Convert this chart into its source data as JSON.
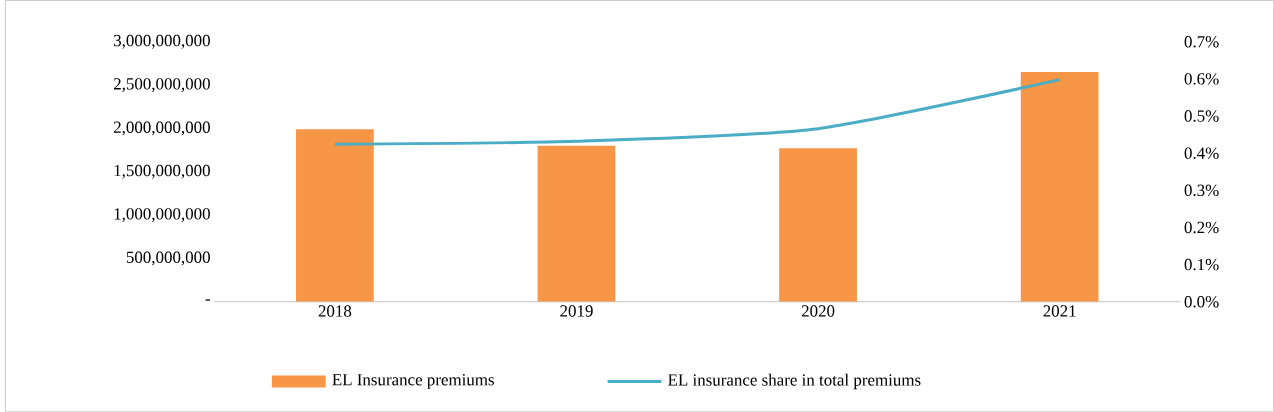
{
  "chart_data": {
    "type": "bar",
    "categories": [
      "2018",
      "2019",
      "2020",
      "2021"
    ],
    "series": [
      {
        "name": "EL Insurance premiums",
        "color": "#f79646",
        "values": [
          1990000000,
          1800000000,
          1770000000,
          2650000000
        ]
      },
      {
        "name": "EL insurance share in total premiums",
        "type": "line",
        "axis": "y2",
        "color": "#4bacc6",
        "values": [
          0.424,
          0.432,
          0.466,
          0.598
        ]
      }
    ],
    "ylim": [
      0,
      3000000000
    ],
    "yticks": [
      {
        "value": 0,
        "label": "-"
      },
      {
        "value": 500000000,
        "label": "500,000,000"
      },
      {
        "value": 1000000000,
        "label": "1,000,000,000"
      },
      {
        "value": 1500000000,
        "label": "1,500,000,000"
      },
      {
        "value": 2000000000,
        "label": "2,000,000,000"
      },
      {
        "value": 2500000000,
        "label": "2,500,000,000"
      },
      {
        "value": 3000000000,
        "label": "3,000,000,000"
      }
    ],
    "y2lim": [
      0,
      0.7
    ],
    "y2ticks": [
      {
        "value": 0,
        "label": "0.0%"
      },
      {
        "value": 0.1,
        "label": "0.1%"
      },
      {
        "value": 0.2,
        "label": "0.2%"
      },
      {
        "value": 0.3,
        "label": "0.3%"
      },
      {
        "value": 0.4,
        "label": "0.4%"
      },
      {
        "value": 0.5,
        "label": "0.5%"
      },
      {
        "value": 0.6,
        "label": "0.6%"
      },
      {
        "value": 0.7,
        "label": "0.7%"
      }
    ],
    "legend": "bottom",
    "grid": false
  }
}
